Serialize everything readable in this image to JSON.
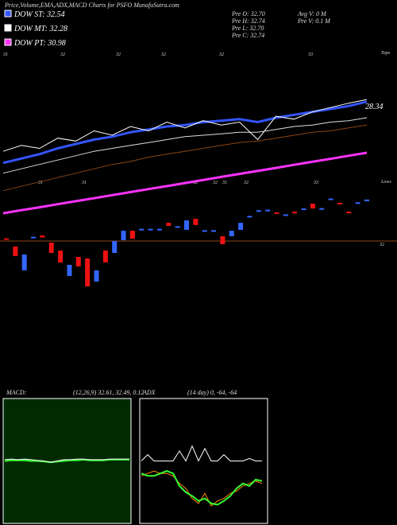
{
  "header": {
    "title": "Price,Volume,EMA,ADX,MACD Charts for PSFO MunafaSutra.com",
    "legend": [
      {
        "label": "DOW ST: 32.54",
        "color": "#3355ff"
      },
      {
        "label": "DOW MT: 32.28",
        "color": "#ffffff"
      },
      {
        "label": "DOW PT: 30.98",
        "color": "#ff33ff"
      }
    ],
    "info_left": [
      "Pre  O: 32.70",
      "Pre  H: 32.74",
      "Pre  L: 32.70",
      "Pre  C: 32.74"
    ],
    "info_right": [
      "Avg V: 0  M",
      "Pre  V: 0.1 M"
    ],
    "top_labels": [
      "31",
      "32",
      "32",
      "32",
      "32",
      "33"
    ],
    "top_caption": "Tops",
    "low_labels": [
      "31",
      "31",
      "32",
      "32",
      "31",
      "32",
      "33"
    ],
    "low_caption": "Lows",
    "end_label": "28.34"
  },
  "chart_data": [
    {
      "type": "line",
      "ylim": [
        24,
        36
      ],
      "series": [
        {
          "color": "#ff33ff",
          "width": 3,
          "values": [
            24.65,
            24.86,
            25.06,
            25.27,
            25.48,
            25.68,
            25.89,
            26.1,
            26.31,
            26.51,
            26.72,
            26.93,
            27.14,
            27.35,
            27.55,
            27.76,
            27.97,
            28.18,
            28.38,
            28.59,
            28.8
          ]
        },
        {
          "color": "#8b4513",
          "width": 1,
          "values": [
            26.2,
            26.5,
            26.8,
            27.1,
            27.4,
            27.7,
            28.0,
            28.2,
            28.5,
            28.7,
            28.9,
            29.1,
            29.3,
            29.5,
            29.6,
            29.8,
            30.0,
            30.2,
            30.3,
            30.5,
            30.7
          ]
        },
        {
          "color": "#dddddd",
          "width": 1,
          "values": [
            27.4,
            27.7,
            28.0,
            28.3,
            28.6,
            28.9,
            29.1,
            29.3,
            29.5,
            29.7,
            29.9,
            30.0,
            30.1,
            30.2,
            30.2,
            30.4,
            30.6,
            30.7,
            30.9,
            31.0,
            31.2
          ]
        },
        {
          "color": "#3355ff",
          "width": 3,
          "values": [
            28.1,
            28.4,
            28.7,
            29.1,
            29.4,
            29.7,
            29.9,
            30.2,
            30.4,
            30.6,
            30.7,
            30.9,
            31.0,
            31.1,
            30.9,
            31.2,
            31.4,
            31.6,
            31.8,
            32.0,
            32.3
          ]
        },
        {
          "color": "#ffffff",
          "width": 1,
          "values": [
            28.9,
            29.3,
            29.1,
            29.8,
            29.6,
            30.3,
            30.0,
            30.6,
            30.3,
            30.9,
            30.5,
            31.0,
            30.7,
            30.9,
            29.7,
            31.3,
            31.1,
            31.6,
            31.9,
            32.2,
            32.45
          ]
        }
      ]
    },
    {
      "type": "candlestick",
      "ylim": [
        28.91,
        34.91
      ],
      "ref_line": 32,
      "up_color": "#3366ff",
      "down_color": "#ee1111",
      "open": [
        32.16,
        31.68,
        30.3,
        32.21,
        32.33,
        31.91,
        31.45,
        29.97,
        31.08,
        30.99,
        29.65,
        31.45,
        31.31,
        32.05,
        32.6,
        32.69,
        32.69,
        32.69,
        33.06,
        32.83,
        32.65,
        33.29,
        32.6,
        32.6,
        32.28,
        32.28,
        32.65,
        33.43,
        33.76,
        33.8,
        33.66,
        33.53,
        33.71,
        33.81,
        34.17,
        33.89,
        34.45,
        34.22,
        33.71,
        34.22,
        34.31
      ],
      "close": [
        32.14,
        31.13,
        31.22,
        32.25,
        32.21,
        31.31,
        30.76,
        30.62,
        30.53,
        29.37,
        30.3,
        30.76,
        32.0,
        32.6,
        32.14,
        32.71,
        32.71,
        32.71,
        32.88,
        32.86,
        33.2,
        32.93,
        32.63,
        32.63,
        31.82,
        32.6,
        33.06,
        33.46,
        33.79,
        33.82,
        33.63,
        33.55,
        33.61,
        33.89,
        33.89,
        33.91,
        34.47,
        34.2,
        33.61,
        34.25,
        34.41
      ]
    },
    {
      "type": "line",
      "title": "MACD:",
      "subtitle": "(12,26,9) 32.61, 32.49, 0.12",
      "ylim": [
        -1,
        1
      ],
      "series": [
        {
          "color": "#33ff33",
          "width": 2,
          "values": [
            0.0,
            0.01,
            0.01,
            0.01,
            0.0,
            0.0,
            -0.01,
            -0.02,
            -0.01,
            0.0,
            0.01,
            0.01,
            0.02,
            0.01,
            0.01,
            0.01,
            0.02,
            0.02,
            0.02,
            0.02
          ]
        },
        {
          "color": "#ffffff",
          "width": 1,
          "values": [
            0.02,
            0.03,
            0.02,
            0.03,
            0.02,
            0.01,
            0.0,
            -0.02,
            0.0,
            0.02,
            0.02,
            0.03,
            0.03,
            0.02,
            0.02,
            0.02,
            0.03,
            0.03,
            0.03,
            0.03
          ]
        }
      ]
    },
    {
      "type": "line",
      "title": "ADX",
      "subtitle": "(14 day) 0, -64, -64",
      "ylim": [
        0,
        100
      ],
      "series": [
        {
          "color": "#ff8800",
          "width": 1,
          "values": [
            38,
            40,
            42,
            40,
            40,
            38,
            32,
            28,
            20,
            16,
            24,
            14,
            18,
            20,
            24,
            26,
            30,
            32,
            34,
            32
          ]
        },
        {
          "color": "#33ff33",
          "width": 2,
          "values": [
            40,
            38,
            38,
            40,
            42,
            40,
            30,
            25,
            22,
            18,
            20,
            16,
            15,
            18,
            22,
            28,
            32,
            30,
            35,
            34
          ]
        },
        {
          "color": "#ffffff",
          "width": 1,
          "values": [
            50,
            55,
            50,
            50,
            50,
            50,
            58,
            50,
            62,
            50,
            60,
            50,
            50,
            55,
            50,
            50,
            50,
            52,
            50,
            50
          ]
        }
      ]
    }
  ]
}
